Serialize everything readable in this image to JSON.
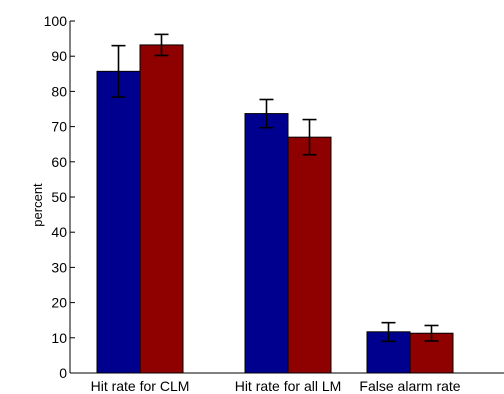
{
  "chart_data": {
    "type": "bar",
    "title": "",
    "xlabel": "",
    "ylabel": "percent",
    "ylim": [
      0,
      100
    ],
    "yticks": [
      0,
      10,
      20,
      30,
      40,
      50,
      60,
      70,
      80,
      90,
      100
    ],
    "categories": [
      "Hit rate for CLM",
      "Hit rate for all LM",
      "False alarm rate"
    ],
    "grid": false,
    "series": [
      {
        "color": "#00008f",
        "values": [
          85.7,
          73.7,
          11.7
        ],
        "error": [
          [
            78.4,
            93.0
          ],
          [
            69.7,
            77.7
          ],
          [
            9.0,
            14.3
          ]
        ]
      },
      {
        "color": "#8f0000",
        "values": [
          93.2,
          67.0,
          11.3
        ],
        "error": [
          [
            90.2,
            96.2
          ],
          [
            62.0,
            72.0
          ],
          [
            9.1,
            13.5
          ]
        ]
      }
    ]
  }
}
